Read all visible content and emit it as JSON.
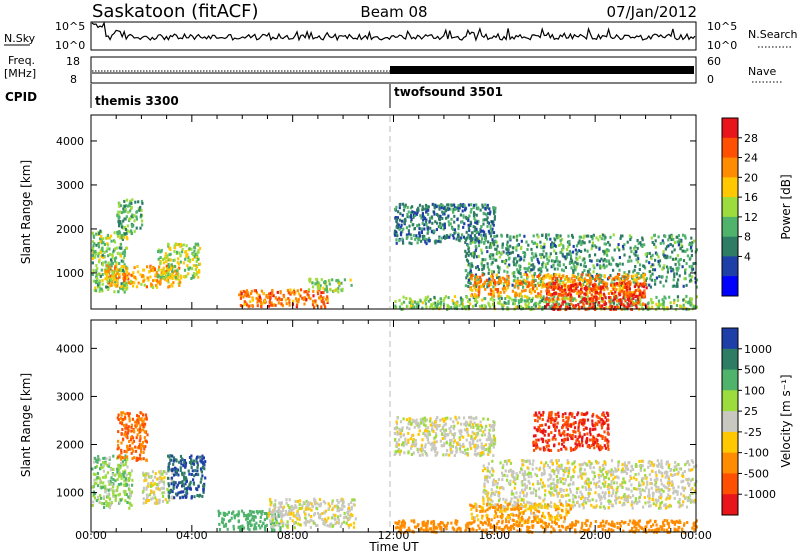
{
  "header": {
    "station": "Saskatoon (fitACF)",
    "beam": "Beam 08",
    "date": "07/Jan/2012"
  },
  "nsky_panel": {
    "left_label": "N.Sky",
    "right_label": "N.Search",
    "y_ticks": [
      "10^5",
      "10^0"
    ]
  },
  "freq_panel": {
    "left_label_line1": "Freq.",
    "left_label_line2": "[MHz]",
    "left_ticks": [
      "18",
      "8"
    ],
    "right_label": "Nave",
    "right_ticks": [
      "60",
      "0"
    ]
  },
  "cpid": {
    "label": "CPID",
    "segments": [
      {
        "name": "themis 3300",
        "start_h": 0,
        "end_h": 12
      },
      {
        "name": "twofsound 3501",
        "start_h": 12,
        "end_h": 24
      }
    ]
  },
  "colorbars": {
    "power": {
      "title": "Power [dB]",
      "ticks": [
        "28",
        "24",
        "20",
        "16",
        "12",
        "8",
        "4"
      ],
      "colors": [
        "#e8151a",
        "#ff4f00",
        "#ff8c00",
        "#ffc800",
        "#9cdc3c",
        "#4fb36c",
        "#2e7c64",
        "#1e3fa8",
        "#0000ff"
      ]
    },
    "velocity": {
      "title": "Velocity [m s⁻¹]",
      "ticks": [
        "1000",
        "500",
        "100",
        "25",
        "-25",
        "-100",
        "-500",
        "-1000"
      ],
      "colors": [
        "#1f3fa8",
        "#2e7c64",
        "#4fb36c",
        "#9cdc3c",
        "#c8c8c0",
        "#ffc800",
        "#ff8c00",
        "#ff4f00",
        "#e8151a"
      ]
    }
  },
  "x_axis": {
    "title": "Time UT",
    "ticks": [
      "00:00",
      "04:00",
      "08:00",
      "12:00",
      "16:00",
      "20:00",
      "00:00"
    ]
  },
  "chart_data": [
    {
      "type": "heatmap",
      "title": "Power [dB]",
      "xlabel": "Time UT",
      "ylabel": "Slant Range [km]",
      "xlim_hours": [
        0,
        24
      ],
      "ylim": [
        180,
        4590
      ],
      "y_ticks": [
        1000,
        2000,
        3000,
        4000
      ],
      "echo_regions": [
        {
          "x_hours": [
            0,
            1.4
          ],
          "range_km": [
            600,
            2000
          ],
          "power_db": 12
        },
        {
          "x_hours": [
            0.5,
            3.5
          ],
          "range_km": [
            700,
            1200
          ],
          "power_db": 20
        },
        {
          "x_hours": [
            1.0,
            2.0
          ],
          "range_km": [
            1900,
            2700
          ],
          "power_db": 10
        },
        {
          "x_hours": [
            2.6,
            4.3
          ],
          "range_km": [
            900,
            1700
          ],
          "power_db": 14
        },
        {
          "x_hours": [
            5.8,
            9.4
          ],
          "range_km": [
            250,
            650
          ],
          "power_db": 24
        },
        {
          "x_hours": [
            8.6,
            10.3
          ],
          "range_km": [
            600,
            900
          ],
          "power_db": 14
        },
        {
          "x_hours": [
            12.0,
            24.0
          ],
          "range_km": [
            200,
            500
          ],
          "power_db": 12
        },
        {
          "x_hours": [
            14.8,
            24.0
          ],
          "range_km": [
            700,
            1900
          ],
          "power_db": 8
        },
        {
          "x_hours": [
            15.0,
            22.0
          ],
          "range_km": [
            500,
            1000
          ],
          "power_db": 22
        },
        {
          "x_hours": [
            18.0,
            22.0
          ],
          "range_km": [
            200,
            800
          ],
          "power_db": 28
        },
        {
          "x_hours": [
            12.0,
            16.0
          ],
          "range_km": [
            1700,
            2600
          ],
          "power_db": 6
        }
      ]
    },
    {
      "type": "heatmap",
      "title": "Velocity [m s⁻¹]",
      "xlabel": "Time UT",
      "ylabel": "Slant Range [km]",
      "xlim_hours": [
        0,
        24
      ],
      "ylim": [
        180,
        4590
      ],
      "y_ticks": [
        1000,
        2000,
        3000,
        4000
      ],
      "echo_regions": [
        {
          "x_hours": [
            0,
            1.6
          ],
          "range_km": [
            700,
            1800
          ],
          "velocity": 50
        },
        {
          "x_hours": [
            1.0,
            2.2
          ],
          "range_km": [
            1700,
            2700
          ],
          "velocity": -300
        },
        {
          "x_hours": [
            2.0,
            3.2
          ],
          "range_km": [
            800,
            1500
          ],
          "velocity": 0
        },
        {
          "x_hours": [
            3.0,
            4.5
          ],
          "range_km": [
            900,
            1800
          ],
          "velocity": 700
        },
        {
          "x_hours": [
            5.0,
            7.6
          ],
          "range_km": [
            250,
            650
          ],
          "velocity": 120
        },
        {
          "x_hours": [
            7.0,
            10.5
          ],
          "range_km": [
            300,
            900
          ],
          "velocity": 0
        },
        {
          "x_hours": [
            12.0,
            16.0
          ],
          "range_km": [
            1800,
            2600
          ],
          "velocity": 0
        },
        {
          "x_hours": [
            15.5,
            24.0
          ],
          "range_km": [
            700,
            1700
          ],
          "velocity": 0
        },
        {
          "x_hours": [
            15.0,
            19.0
          ],
          "range_km": [
            400,
            800
          ],
          "velocity": -60
        },
        {
          "x_hours": [
            17.5,
            20.5
          ],
          "range_km": [
            1900,
            2700
          ],
          "velocity": -700
        },
        {
          "x_hours": [
            12.0,
            24.0
          ],
          "range_km": [
            200,
            450
          ],
          "velocity": -100
        }
      ]
    }
  ]
}
